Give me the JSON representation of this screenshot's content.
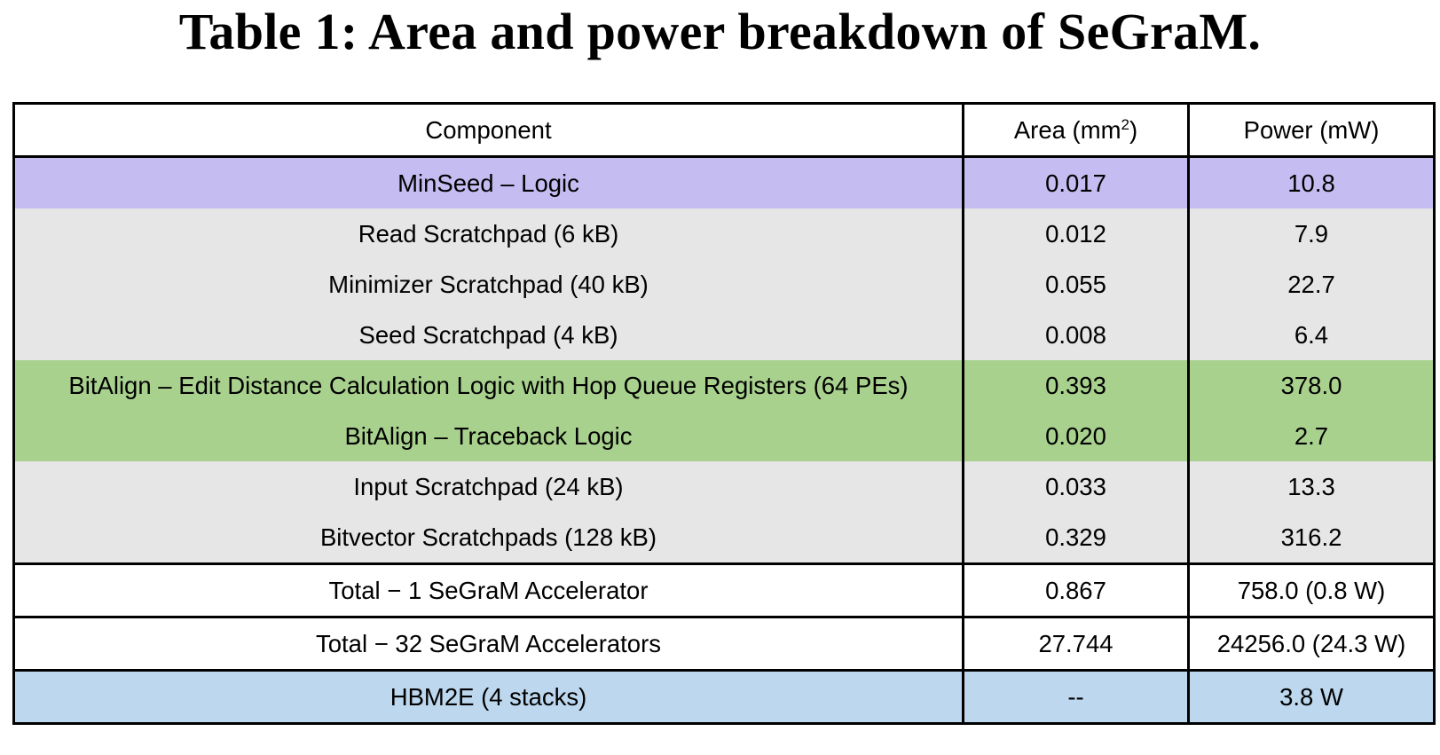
{
  "caption": "Table 1: Area and power breakdown of SeGraM.",
  "colors": {
    "purple": "#c5bcf1",
    "gray": "#e6e6e6",
    "green": "#a9d18e",
    "white": "#ffffff",
    "blue": "#bdd7ee"
  },
  "table": {
    "headers": {
      "component": "Component",
      "area_prefix": "Area (mm",
      "area_sup": "2",
      "area_suffix": ")",
      "power": "Power (mW)"
    },
    "rows": [
      {
        "component": "MinSeed – Logic",
        "area": "0.017",
        "power": "10.8",
        "fill": "purple",
        "bold": false
      },
      {
        "component": "Read Scratchpad (6 kB)",
        "area": "0.012",
        "power": "7.9",
        "fill": "gray",
        "bold": false
      },
      {
        "component": "Minimizer Scratchpad (40 kB)",
        "area": "0.055",
        "power": "22.7",
        "fill": "gray",
        "bold": false
      },
      {
        "component": "Seed Scratchpad (4 kB)",
        "area": "0.008",
        "power": "6.4",
        "fill": "gray",
        "bold": false
      },
      {
        "component": "BitAlign – Edit Distance Calculation Logic with Hop Queue Registers (64 PEs)",
        "area": "0.393",
        "power": "378.0",
        "fill": "green",
        "bold": false
      },
      {
        "component": "BitAlign – Traceback Logic",
        "area": "0.020",
        "power": "2.7",
        "fill": "green",
        "bold": false
      },
      {
        "component": "Input Scratchpad (24 kB)",
        "area": "0.033",
        "power": "13.3",
        "fill": "gray",
        "bold": false
      },
      {
        "component": "Bitvector Scratchpads (128 kB)",
        "area": "0.329",
        "power": "316.2",
        "fill": "gray",
        "bold": false
      },
      {
        "component": "Total − 1 SeGraM Accelerator",
        "area": "0.867",
        "power": "758.0 (0.8 W)",
        "fill": "white",
        "bold": true,
        "border_top": true
      },
      {
        "component": "Total − 32 SeGraM Accelerators",
        "area": "27.744",
        "power": "24256.0 (24.3 W)",
        "fill": "white",
        "bold": true,
        "border_top": true
      },
      {
        "component": "HBM2E (4 stacks)",
        "area": "--",
        "power": "3.8 W",
        "fill": "blue",
        "bold": true,
        "border_top": true
      }
    ]
  }
}
